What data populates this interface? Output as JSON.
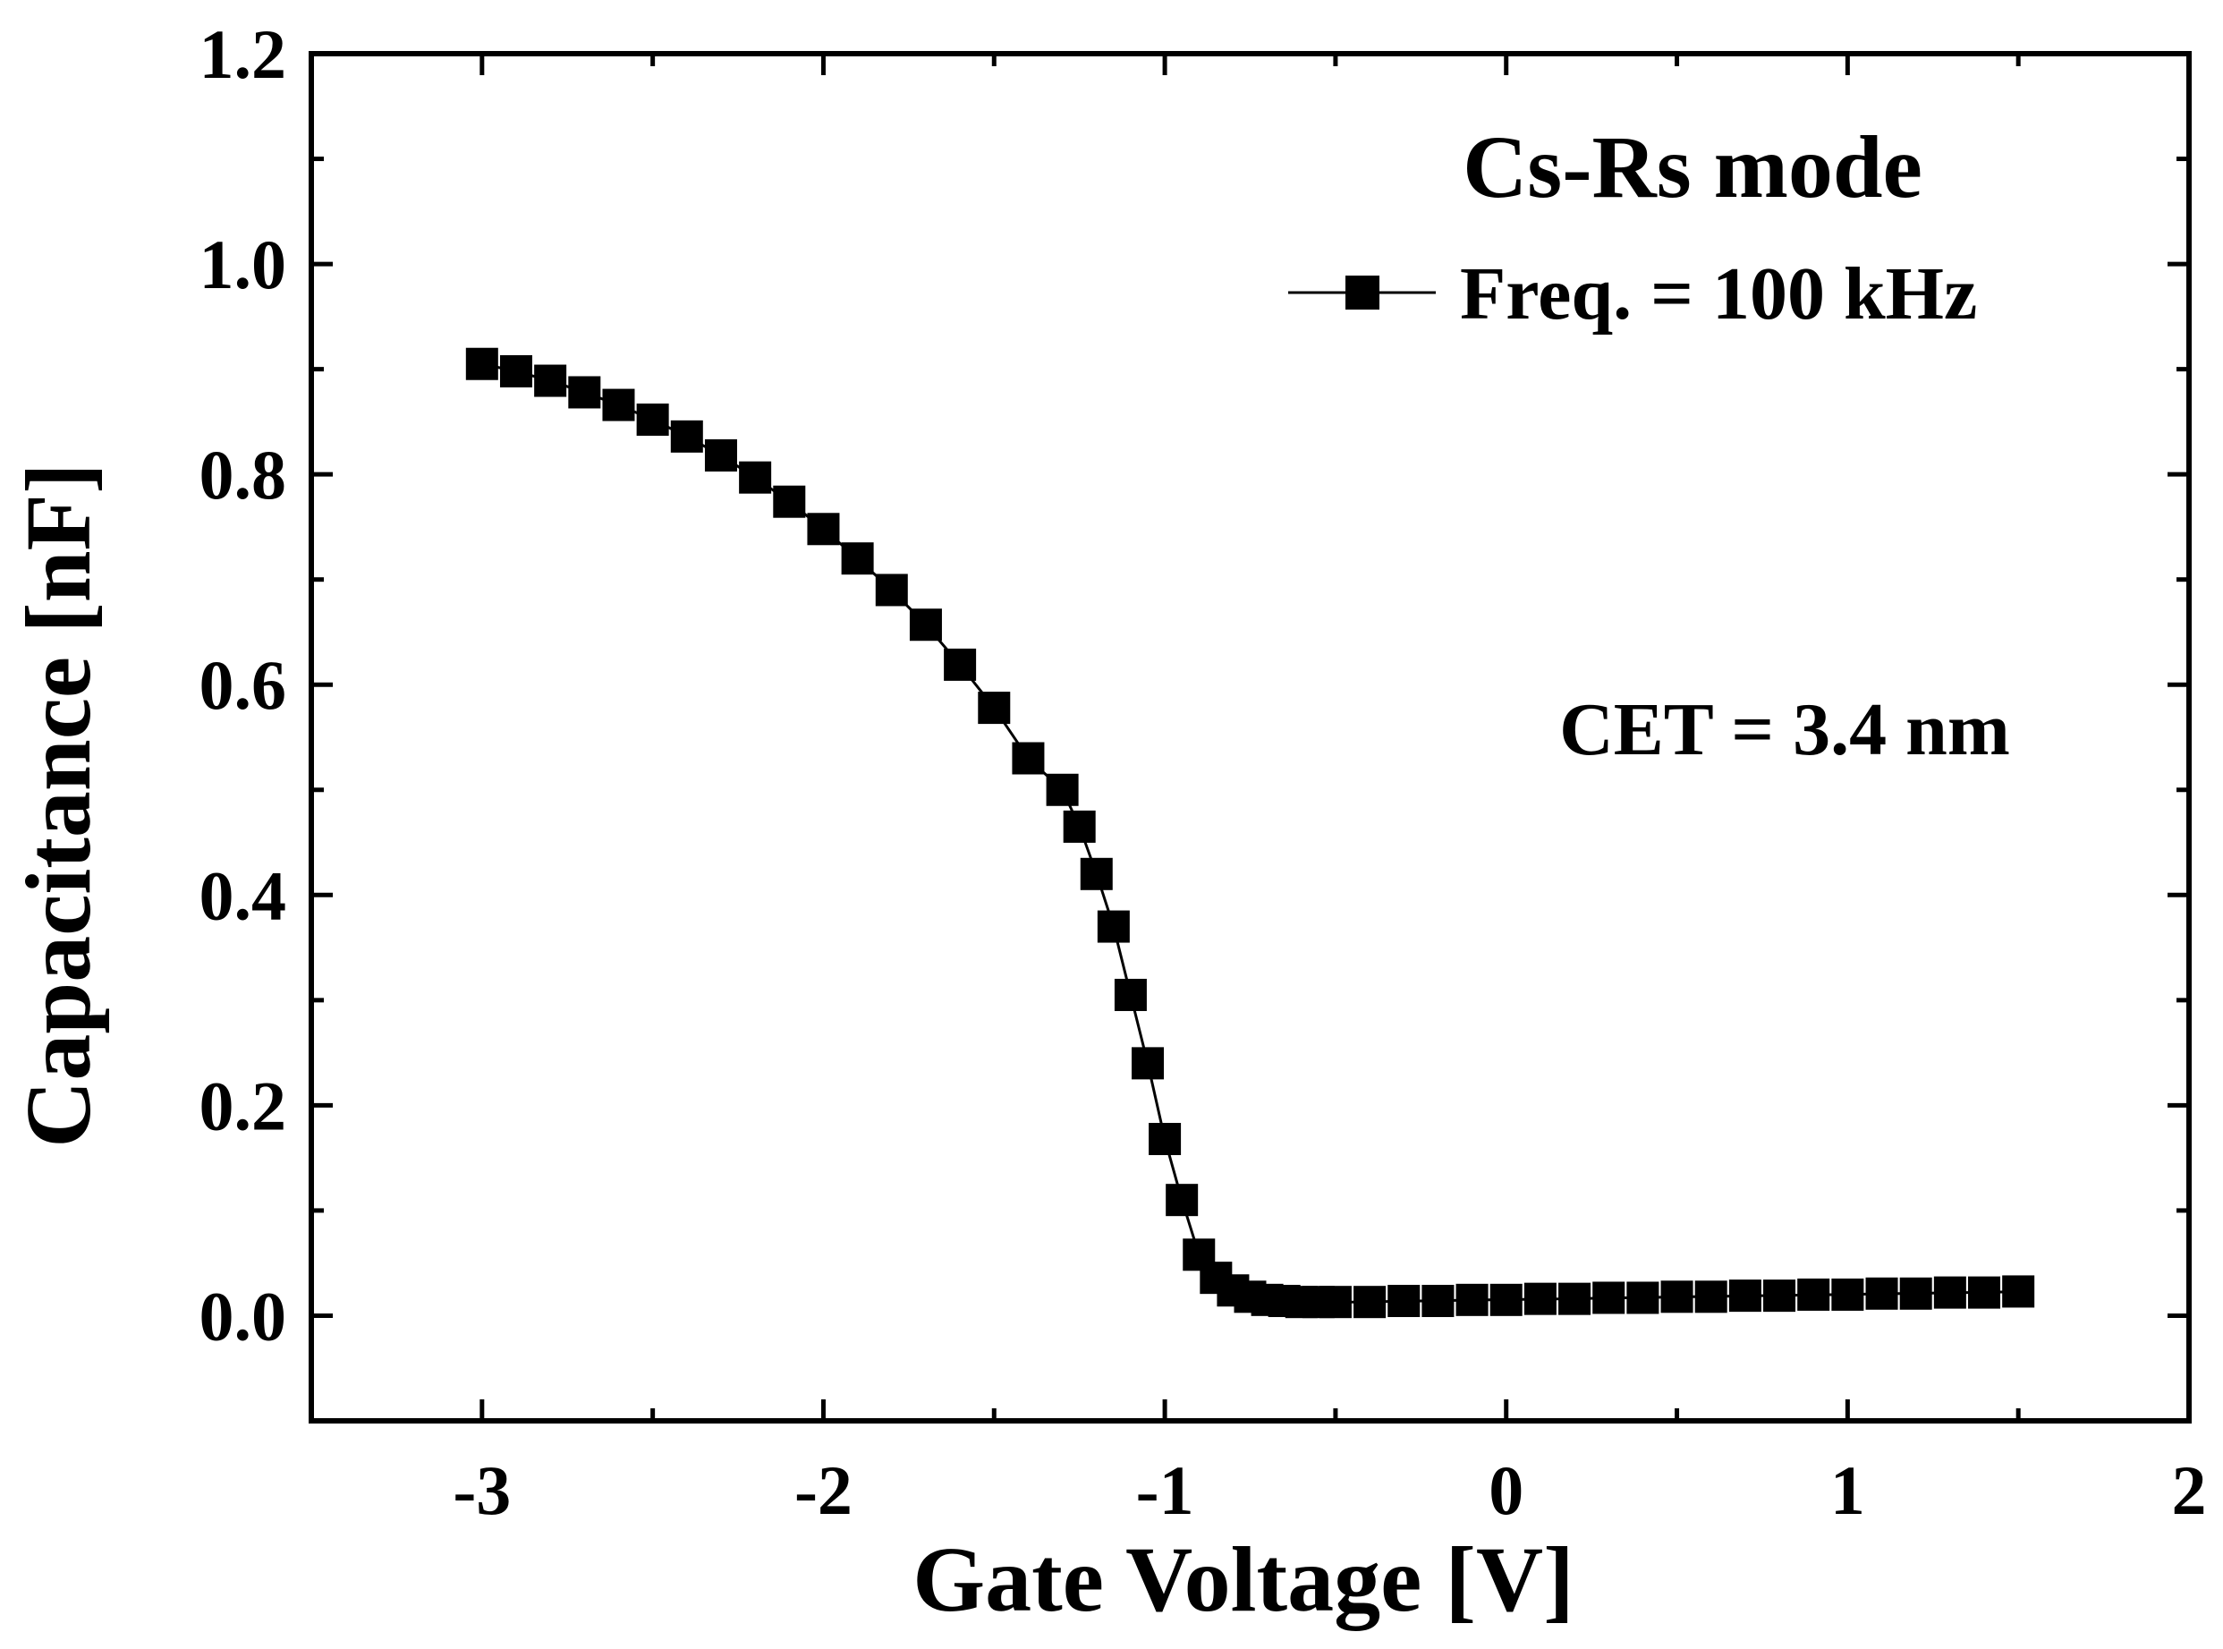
{
  "chart_data": {
    "type": "scatter",
    "title": "",
    "xlabel": "Gate Voltage [V]",
    "ylabel": "Capacitance [nF]",
    "xlim": [
      -3.5,
      2
    ],
    "ylim": [
      -0.1,
      1.2
    ],
    "xticks": [
      -3,
      -2,
      -1,
      0,
      1,
      2
    ],
    "xtick_labels": [
      "-3",
      "-2",
      "-1",
      "0",
      "1",
      "2"
    ],
    "yticks": [
      0.0,
      0.2,
      0.4,
      0.6,
      0.8,
      1.0,
      1.2
    ],
    "ytick_labels": [
      "0.0",
      "0.2",
      "0.4",
      "0.6",
      "0.8",
      "1.0",
      "1.2"
    ],
    "grid": false,
    "legend_position": "top-right",
    "annotation_title": "Cs-Rs mode",
    "annotation_text": "CET = 3.4 nm",
    "series": [
      {
        "name": "Freq. = 100 kHz",
        "marker": "square",
        "color": "#000000",
        "x": [
          -3.0,
          -2.9,
          -2.8,
          -2.7,
          -2.6,
          -2.5,
          -2.4,
          -2.3,
          -2.2,
          -2.1,
          -2.0,
          -1.9,
          -1.8,
          -1.7,
          -1.6,
          -1.5,
          -1.4,
          -1.3,
          -1.25,
          -1.2,
          -1.15,
          -1.1,
          -1.05,
          -1.0,
          -0.95,
          -0.9,
          -0.85,
          -0.8,
          -0.75,
          -0.7,
          -0.65,
          -0.6,
          -0.55,
          -0.5,
          -0.4,
          -0.3,
          -0.2,
          -0.1,
          0.0,
          0.1,
          0.2,
          0.3,
          0.4,
          0.5,
          0.6,
          0.7,
          0.8,
          0.9,
          1.0,
          1.1,
          1.2,
          1.3,
          1.4,
          1.5
        ],
        "y": [
          0.905,
          0.898,
          0.889,
          0.878,
          0.866,
          0.852,
          0.836,
          0.818,
          0.797,
          0.774,
          0.748,
          0.72,
          0.69,
          0.657,
          0.619,
          0.578,
          0.53,
          0.5,
          0.465,
          0.42,
          0.37,
          0.305,
          0.24,
          0.168,
          0.11,
          0.058,
          0.036,
          0.024,
          0.018,
          0.015,
          0.014,
          0.013,
          0.013,
          0.013,
          0.013,
          0.014,
          0.014,
          0.015,
          0.015,
          0.016,
          0.016,
          0.017,
          0.017,
          0.018,
          0.018,
          0.019,
          0.019,
          0.02,
          0.02,
          0.021,
          0.021,
          0.022,
          0.022,
          0.023
        ]
      }
    ]
  }
}
